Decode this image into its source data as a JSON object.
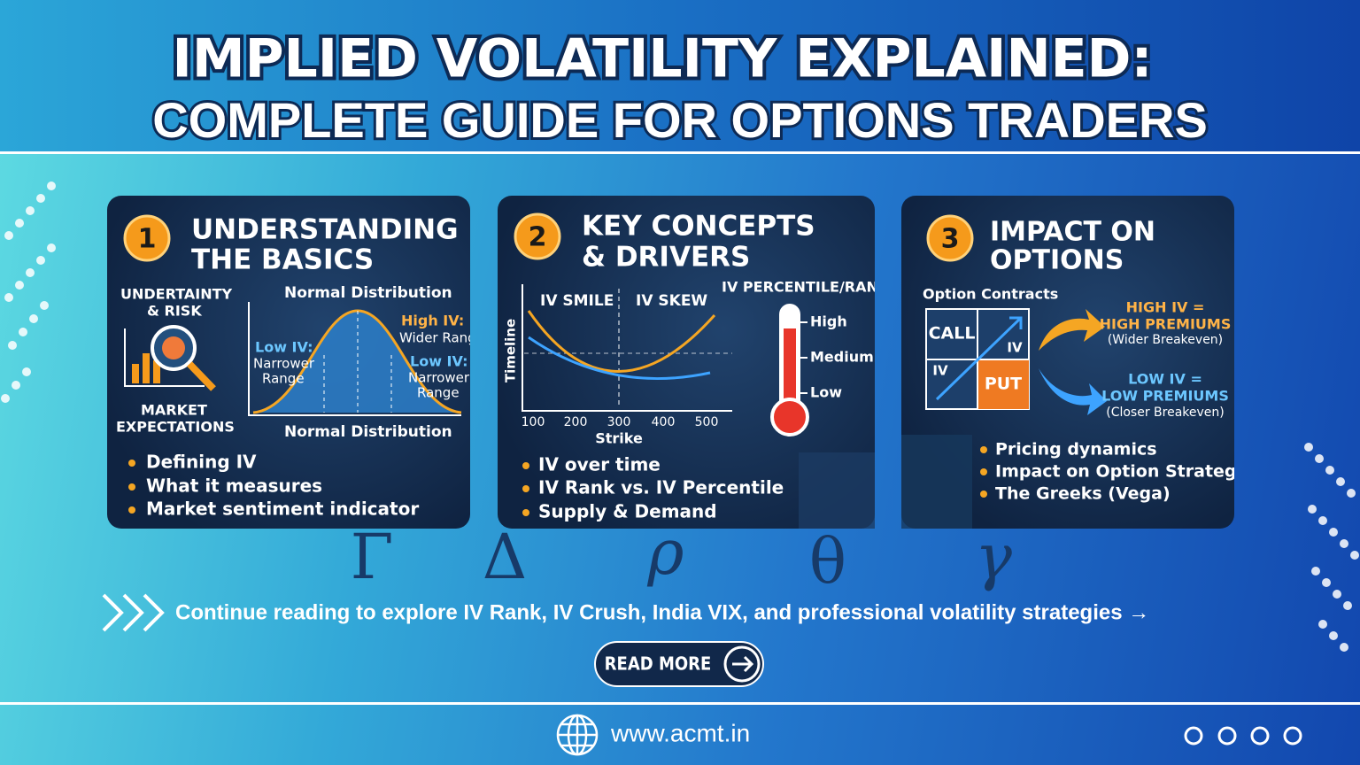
{
  "header": {
    "title": "IMPLIED VOLATILITY EXPLAINED:",
    "subtitle": "COMPLETE GUIDE FOR OPTIONS TRADERS"
  },
  "cards": [
    {
      "number": "1",
      "title": [
        "UNDERSTANDING",
        "THE BASICS"
      ],
      "labels": {
        "risk": [
          "UNDERTAINTY",
          "& RISK"
        ],
        "dist_top": "Normal Distribution",
        "high_iv": [
          "High IV:",
          "Wider Range"
        ],
        "low_iv_left": [
          "Low IV:",
          "Narrower",
          "Range"
        ],
        "low_iv_right": [
          "Low IV:",
          "Narrower",
          "Range"
        ],
        "market": [
          "MARKET",
          "EXPECTATIONS"
        ],
        "dist_bottom": "Normal Distribution"
      },
      "bullets": [
        "Defining IV",
        "What it measures",
        "Market sentiment indicator"
      ]
    },
    {
      "number": "2",
      "title": [
        "KEY CONCEPTS",
        "& DRIVERS"
      ],
      "labels": {
        "smile": "IV SMILE",
        "skew": "IV SKEW",
        "percentile": "IV PERCENTILE/RANK",
        "y_axis": "Timeline",
        "x_ticks": [
          "100",
          "200",
          "300",
          "400",
          "500"
        ],
        "x_axis": "Strike",
        "levels": [
          "High",
          "Medium",
          "Low"
        ]
      },
      "bullets": [
        "IV over time",
        "IV Rank vs. IV Percentile",
        "Supply & Demand"
      ]
    },
    {
      "number": "3",
      "title": [
        "IMPACT ON",
        "OPTIONS"
      ],
      "labels": {
        "contracts": "Option Contracts",
        "call": "CALL",
        "iv_right": "IV",
        "iv_left": "IV",
        "put": "PUT",
        "high": [
          "HIGH IV =",
          "HIGH PREMIUMS",
          "(Wider Breakeven)"
        ],
        "low": [
          "LOW IV =",
          "LOW PREMIUMS",
          "(Closer Breakeven)"
        ]
      },
      "bullets": [
        "Pricing dynamics",
        "Impact on Option Strategies",
        "The Greeks (Vega)"
      ]
    }
  ],
  "greek_letters": [
    "Γ",
    "Δ",
    "ρ",
    "θ",
    "γ"
  ],
  "cta": {
    "text": "Continue reading to explore IV Rank, IV Crush, India VIX, and professional volatility strategies →",
    "button": "READ MORE"
  },
  "footer": {
    "url": "www.acmt.in"
  }
}
